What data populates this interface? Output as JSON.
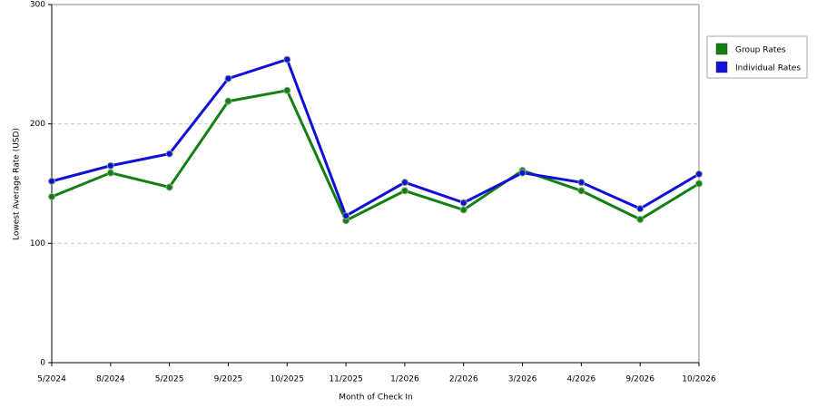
{
  "chart_data": {
    "type": "line",
    "x_label": "Month of Check In",
    "y_label": "Lowest Average Rate (USD)",
    "categories": [
      "5/2024",
      "8/2024",
      "5/2025",
      "9/2025",
      "10/2025",
      "11/2025",
      "1/2026",
      "2/2026",
      "3/2026",
      "4/2026",
      "9/2026",
      "10/2026"
    ],
    "series": [
      {
        "name": "Group Rates",
        "color": "#138013",
        "values": [
          139,
          159,
          147,
          219,
          228,
          119,
          144,
          128,
          161,
          144,
          120,
          150
        ]
      },
      {
        "name": "Individual Rates",
        "color": "#1010d8",
        "values": [
          152,
          165,
          175,
          238,
          254,
          123,
          151,
          134,
          159,
          151,
          129,
          158
        ]
      }
    ],
    "ylim": [
      0,
      300
    ],
    "yticks": [
      0,
      100,
      200,
      300
    ],
    "grid": true,
    "legend": "right"
  }
}
